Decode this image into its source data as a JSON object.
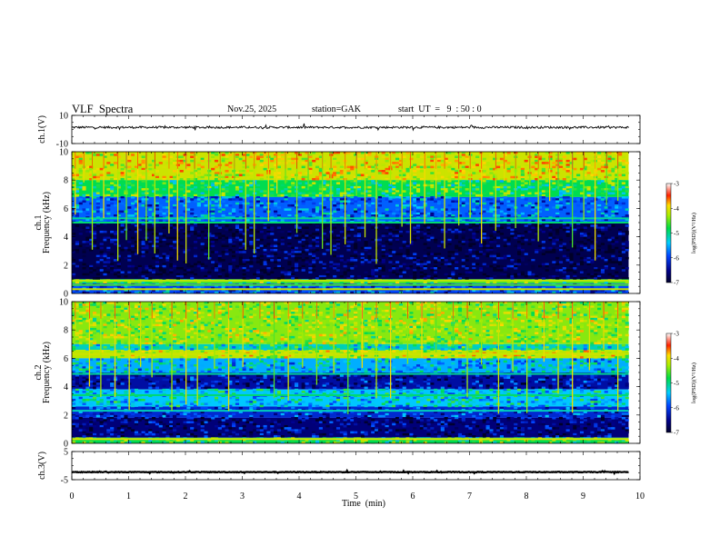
{
  "header": {
    "title": "VLF  Spectra",
    "date": "Nov.25, 2025",
    "station": "station=GAK",
    "start_ut": "start  UT  =   9  : 50 : 0"
  },
  "chart_data": [
    {
      "type": "line",
      "panel": "ch1-waveform",
      "ylabel": "ch.1(V)",
      "ylim": [
        -10,
        10
      ],
      "yticks": [
        "10",
        "-10"
      ],
      "baseline": 1.5,
      "noise_amplitude": 1.5,
      "xlim": [
        0,
        10
      ],
      "trace_end_min": 9.8
    },
    {
      "type": "heatmap",
      "panel": "ch1-spectrogram",
      "ylabel": "ch.1 Frequency (kHz)",
      "ylim": [
        0,
        10
      ],
      "yticks": [
        "0",
        "2",
        "4",
        "6",
        "8",
        "10"
      ],
      "xlim": [
        0,
        10
      ],
      "trace_end_min": 9.8,
      "colorbar": {
        "label": "log(PSD)(V²/Hz)",
        "range": [
          -7,
          -3
        ],
        "ticks": [
          "-3",
          "-4",
          "-5",
          "-6",
          "-7"
        ]
      },
      "bands_khz": [
        {
          "from": 8.0,
          "to": 10.0,
          "level": -4.3
        },
        {
          "from": 6.8,
          "to": 8.0,
          "level": -5.0
        },
        {
          "from": 5.0,
          "to": 6.8,
          "level": -5.9
        },
        {
          "from": 1.0,
          "to": 5.0,
          "level": -6.8
        },
        {
          "from": 0.7,
          "to": 1.0,
          "level": -4.8
        },
        {
          "from": 0.0,
          "to": 0.7,
          "level": -6.0
        }
      ],
      "lines_khz": [
        {
          "f": 5.3,
          "level": -5.2
        },
        {
          "f": 5.0,
          "level": -5.1
        },
        {
          "f": 0.9,
          "level": -4.4
        },
        {
          "f": 0.6,
          "level": -4.8
        },
        {
          "f": 0.3,
          "level": -4.3
        }
      ],
      "bursts_min": [
        0.05,
        0.2,
        0.35,
        0.55,
        0.8,
        0.95,
        1.15,
        1.3,
        1.45,
        1.7,
        1.85,
        2.0,
        2.15,
        2.4,
        2.6,
        2.85,
        3.05,
        3.2,
        3.45,
        3.6,
        3.75,
        3.95,
        4.15,
        4.4,
        4.55,
        4.8,
        5.0,
        5.15,
        5.35,
        5.6,
        5.8,
        5.95,
        6.2,
        6.4,
        6.55,
        6.8,
        7.0,
        7.2,
        7.45,
        7.6,
        7.8,
        8.05,
        8.2,
        8.4,
        8.55,
        8.8,
        9.0,
        9.2,
        9.4,
        9.6
      ]
    },
    {
      "type": "heatmap",
      "panel": "ch2-spectrogram",
      "ylabel": "ch.2 Frequency (kHz)",
      "ylim": [
        0,
        10
      ],
      "yticks": [
        "0",
        "2",
        "4",
        "6",
        "8",
        "10"
      ],
      "xlim": [
        0,
        10
      ],
      "trace_end_min": 9.8,
      "colorbar": {
        "label": "log(PSD)(V²/Hz)",
        "range": [
          -7,
          -3
        ],
        "ticks": [
          "-3",
          "-4",
          "-5",
          "-6",
          "-7"
        ]
      },
      "bands_khz": [
        {
          "from": 7.0,
          "to": 10.0,
          "level": -4.6
        },
        {
          "from": 6.6,
          "to": 7.0,
          "level": -5.3
        },
        {
          "from": 6.0,
          "to": 6.6,
          "level": -4.4
        },
        {
          "from": 5.0,
          "to": 6.0,
          "level": -5.6
        },
        {
          "from": 3.8,
          "to": 5.0,
          "level": -6.4
        },
        {
          "from": 2.6,
          "to": 3.8,
          "level": -5.5
        },
        {
          "from": 1.8,
          "to": 2.6,
          "level": -6.2
        },
        {
          "from": 0.4,
          "to": 1.8,
          "level": -6.6
        },
        {
          "from": 0.0,
          "to": 0.4,
          "level": -5.0
        }
      ],
      "lines_khz": [
        {
          "f": 6.3,
          "level": -4.3
        },
        {
          "f": 4.9,
          "level": -5.2
        },
        {
          "f": 3.4,
          "level": -5.1
        },
        {
          "f": 2.3,
          "level": -5.3
        },
        {
          "f": 0.3,
          "level": -4.2
        }
      ],
      "bursts_min": [
        0.05,
        0.3,
        0.5,
        0.75,
        1.0,
        1.2,
        1.4,
        1.75,
        2.0,
        2.2,
        2.5,
        2.75,
        3.0,
        3.3,
        3.55,
        3.8,
        4.05,
        4.3,
        4.6,
        4.85,
        5.1,
        5.35,
        5.6,
        5.9,
        6.15,
        6.4,
        6.7,
        6.95,
        7.2,
        7.5,
        7.75,
        8.0,
        8.3,
        8.55,
        8.8,
        9.1,
        9.35,
        9.6
      ]
    },
    {
      "type": "line",
      "panel": "ch3-waveform",
      "ylabel": "ch.3(V)",
      "ylim": [
        -5,
        5
      ],
      "yticks": [
        "5",
        "-5"
      ],
      "baseline": -2.3,
      "noise_amplitude": 0.25,
      "xlim": [
        0,
        10
      ],
      "trace_end_min": 9.8,
      "xlabel": "Time  (min)",
      "xticks": [
        "0",
        "1",
        "2",
        "3",
        "4",
        "5",
        "6",
        "7",
        "8",
        "9",
        "10"
      ]
    }
  ]
}
